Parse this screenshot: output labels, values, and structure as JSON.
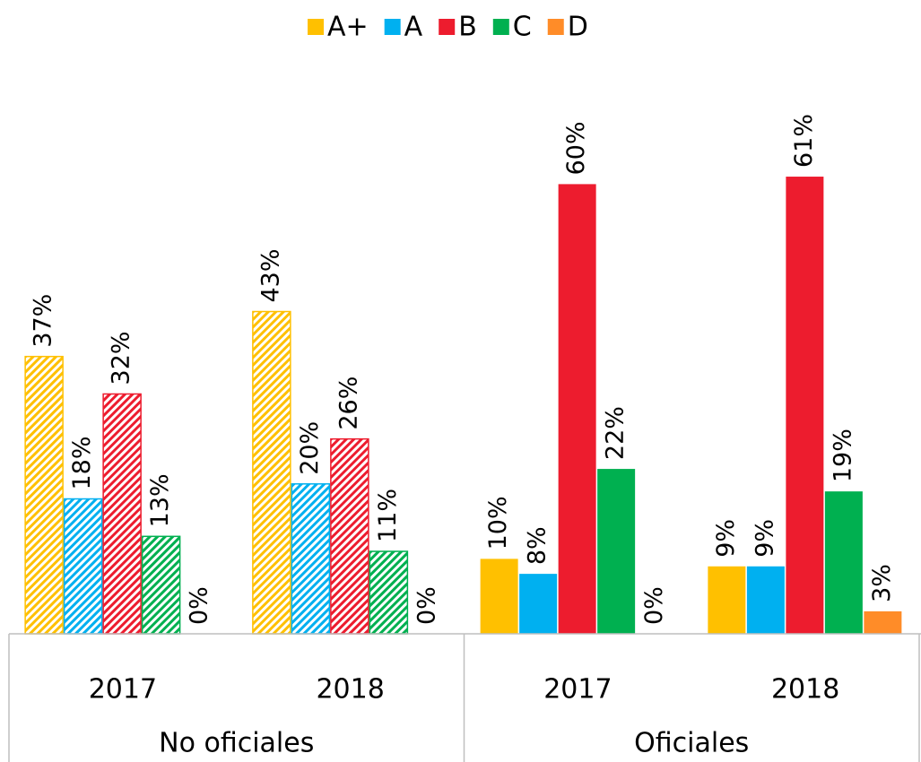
{
  "chart_data": {
    "type": "bar",
    "categories": [
      "2017",
      "2018",
      "2017",
      "2018"
    ],
    "groups": [
      {
        "name": "No oficiales",
        "pattern": "hatch",
        "categories": [
          0,
          1
        ]
      },
      {
        "name": "Oficiales",
        "pattern": "solid",
        "categories": [
          2,
          3
        ]
      }
    ],
    "legend": "top",
    "series": [
      {
        "name": "A+",
        "color": "#FFC000",
        "values": [
          37,
          43,
          10,
          9
        ],
        "value_labels": [
          "37%",
          "43%",
          "10%",
          "9%"
        ]
      },
      {
        "name": "A",
        "color": "#00B0F0",
        "values": [
          18,
          20,
          8,
          9
        ],
        "value_labels": [
          "18%",
          "20%",
          "8%",
          "9%"
        ]
      },
      {
        "name": "B",
        "color": "#ED1C2E",
        "values": [
          32,
          26,
          60,
          61
        ],
        "value_labels": [
          "32%",
          "26%",
          "60%",
          "61%"
        ]
      },
      {
        "name": "C",
        "color": "#00B050",
        "values": [
          13,
          11,
          22,
          19
        ],
        "value_labels": [
          "13%",
          "11%",
          "22%",
          "19%"
        ]
      },
      {
        "name": "D",
        "color": "#FF8C28",
        "values": [
          0,
          0,
          0,
          3
        ],
        "value_labels": [
          "0%",
          "0%",
          "0%",
          "3%"
        ]
      }
    ]
  }
}
